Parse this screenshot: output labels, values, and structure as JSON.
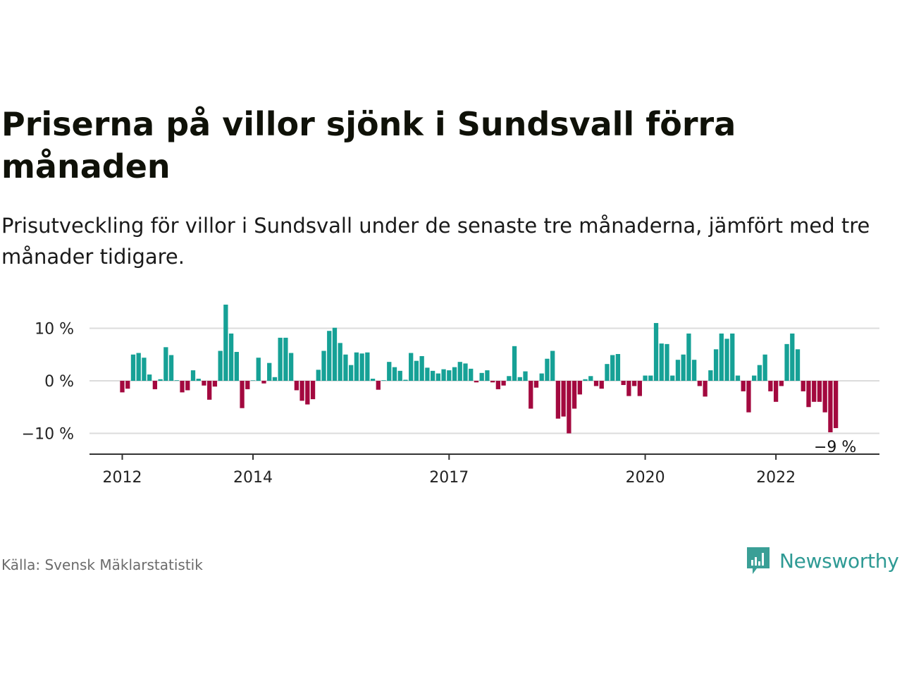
{
  "header": {
    "title": "Priserna på villor sjönk i Sundsvall förra månaden",
    "subtitle": "Prisutveckling för villor i Sundsvall under de senaste tre månaderna, jämfört med tre månader tidigare."
  },
  "footer": {
    "source": "Källa: Svensk Mäklarstatistik",
    "brand": "Newsworthy"
  },
  "colors": {
    "positive": "#16a196",
    "negative": "#a3093f",
    "brand": "#2e9a94"
  },
  "chart_data": {
    "type": "bar",
    "unit": "%",
    "start": "2012-01",
    "ylim": [
      -14,
      14
    ],
    "y_ticks": [
      {
        "value": 10,
        "label": "10 %"
      },
      {
        "value": 0,
        "label": "0 %"
      },
      {
        "value": -10,
        "label": "−10 %"
      }
    ],
    "x_ticks": [
      {
        "date": "2012-01",
        "label": "2012"
      },
      {
        "date": "2014-01",
        "label": "2014"
      },
      {
        "date": "2017-01",
        "label": "2017"
      },
      {
        "date": "2020-01",
        "label": "2020"
      },
      {
        "date": "2022-01",
        "label": "2022"
      }
    ],
    "grid": true,
    "last_label": "−9 %",
    "values": [
      -2.2,
      -1.5,
      5.0,
      5.3,
      4.4,
      1.2,
      -1.6,
      0.3,
      6.4,
      4.9,
      0.1,
      -2.2,
      -1.8,
      2.0,
      0.4,
      -0.9,
      -3.6,
      -1.1,
      5.7,
      14.5,
      9.0,
      5.5,
      -5.2,
      -1.6,
      0.0,
      4.4,
      -0.5,
      3.4,
      0.7,
      8.2,
      8.2,
      5.3,
      -1.8,
      -3.8,
      -4.5,
      -3.5,
      2.1,
      5.7,
      9.5,
      10.1,
      7.2,
      5.0,
      3.0,
      5.4,
      5.2,
      5.4,
      0.4,
      -1.7,
      0.1,
      3.6,
      2.6,
      1.9,
      0.2,
      5.3,
      3.8,
      4.7,
      2.5,
      1.9,
      1.4,
      2.2,
      2.0,
      2.6,
      3.6,
      3.3,
      2.3,
      -0.3,
      1.5,
      2.0,
      -0.3,
      -1.6,
      -0.9,
      0.9,
      6.6,
      0.7,
      1.8,
      -5.3,
      -1.3,
      1.4,
      4.2,
      5.7,
      -7.2,
      -6.8,
      -10.0,
      -5.3,
      -2.6,
      0.3,
      0.9,
      -1.0,
      -1.5,
      3.2,
      4.9,
      5.1,
      -0.8,
      -2.9,
      -1.0,
      -2.9,
      1.0,
      1.0,
      11.0,
      7.1,
      7.0,
      1.0,
      4.0,
      5.0,
      9.0,
      4.0,
      -1.0,
      -3.0,
      2.0,
      6.0,
      9.0,
      8.0,
      9.0,
      1.0,
      -2.0,
      -6.0,
      1.0,
      3.0,
      5.0,
      -2.0,
      -4.0,
      -1.0,
      7.0,
      9.0,
      6.0,
      -2.0,
      -5.0,
      -4.0,
      -4.0,
      -6.0,
      -9.8,
      -9.0
    ]
  }
}
